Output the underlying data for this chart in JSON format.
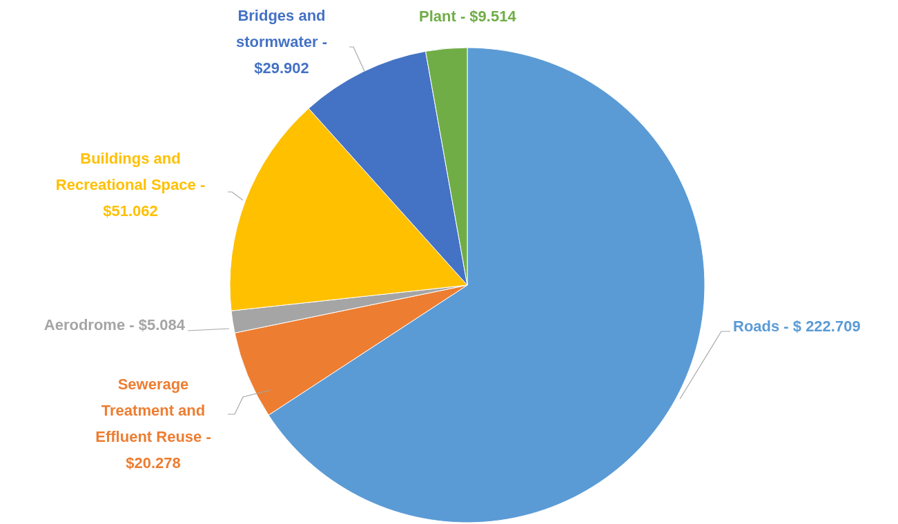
{
  "chart_data": {
    "type": "pie",
    "categories": [
      "Roads -",
      "Sewerage Treatment and Effluent Reuse -",
      "Aerodrome -",
      "Buildings and Recreational Space -",
      "Bridges and stormwater -",
      "Plant -"
    ],
    "values": [
      222.709,
      20.278,
      5.084,
      51.062,
      29.902,
      9.514
    ],
    "value_labels": [
      "$ 222.709",
      "$20.278",
      "$5.084",
      "$51.062",
      "$29.902",
      "$9.514"
    ],
    "colors": [
      "#5b9bd5",
      "#ed7d31",
      "#a5a5a5",
      "#ffc000",
      "#4472c4",
      "#70ad47"
    ]
  }
}
